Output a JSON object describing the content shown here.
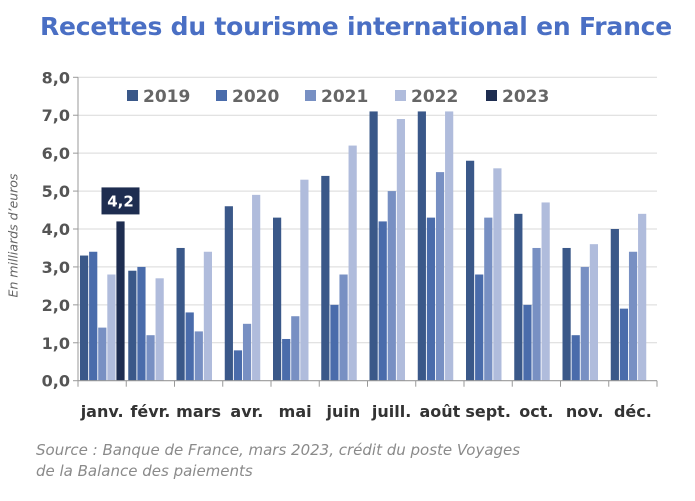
{
  "chart_data": {
    "type": "bar",
    "title": "Recettes du tourisme international en France",
    "ylabel": "En milliards d’euros",
    "xlabel": "",
    "ylim": [
      0,
      8
    ],
    "yticks": [
      "0,0",
      "1,0",
      "2,0",
      "3,0",
      "4,0",
      "5,0",
      "6,0",
      "7,0",
      "8,0"
    ],
    "grid": true,
    "legend": "top",
    "categories": [
      "janv.",
      "févr.",
      "mars",
      "avr.",
      "mai",
      "juin",
      "juill.",
      "août",
      "sept.",
      "oct.",
      "nov.",
      "déc."
    ],
    "series": [
      {
        "name": "2019",
        "color": "#3a5889",
        "values": [
          3.3,
          2.9,
          3.5,
          4.6,
          4.3,
          5.4,
          7.1,
          7.1,
          5.8,
          4.4,
          3.5,
          4.0
        ]
      },
      {
        "name": "2020",
        "color": "#4a6cab",
        "values": [
          3.4,
          3.0,
          1.8,
          0.8,
          1.1,
          2.0,
          4.2,
          4.3,
          2.8,
          2.0,
          1.2,
          1.9
        ]
      },
      {
        "name": "2021",
        "color": "#7890c3",
        "values": [
          1.4,
          1.2,
          1.3,
          1.5,
          1.7,
          2.8,
          5.0,
          5.5,
          4.3,
          3.5,
          3.0,
          3.4
        ]
      },
      {
        "name": "2022",
        "color": "#b0bcdc",
        "values": [
          2.8,
          2.7,
          3.4,
          4.9,
          5.3,
          6.2,
          6.9,
          7.1,
          5.6,
          4.7,
          3.6,
          4.4
        ]
      },
      {
        "name": "2023",
        "color": "#1e2d50",
        "values": [
          4.2,
          null,
          null,
          null,
          null,
          null,
          null,
          null,
          null,
          null,
          null,
          null
        ]
      }
    ],
    "annotations": [
      {
        "category": "janv.",
        "series": "2023",
        "text": "4,2"
      }
    ]
  },
  "source": {
    "line1": "Source : Banque de France, mars 2023, crédit du poste Voyages",
    "line2": "de la Balance des paiements"
  }
}
